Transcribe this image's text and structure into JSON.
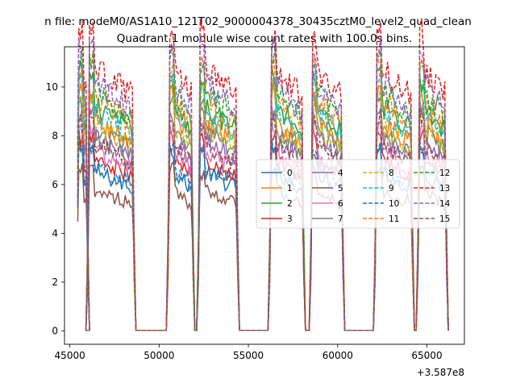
{
  "chart_data": {
    "type": "line",
    "suptitle": "n file: modeM0/AS1A10_121T02_9000004378_30435cztM0_level2_quad_clean",
    "title": "Quadrant 1 module wise count rates with 100.0s bins.",
    "xlabel": "",
    "ylabel": "",
    "x_offset_label": "+3.587e8",
    "xlim": [
      44700,
      67100
    ],
    "ylim": [
      -0.55,
      11.65
    ],
    "xticks": [
      45000,
      50000,
      55000,
      60000,
      65000
    ],
    "xtick_labels": [
      "45000",
      "50000",
      "55000",
      "60000",
      "65000"
    ],
    "yticks": [
      0,
      2,
      4,
      6,
      8,
      10
    ],
    "ytick_labels": [
      "0",
      "2",
      "4",
      "6",
      "8",
      "10"
    ],
    "legend_position": "center-right",
    "segments": [
      {
        "start": 45500,
        "end": 45900
      },
      {
        "start": 46100,
        "end": 48500
      },
      {
        "start": 50600,
        "end": 51800
      },
      {
        "start": 52300,
        "end": 54300
      },
      {
        "start": 56300,
        "end": 58000
      },
      {
        "start": 58600,
        "end": 60200
      },
      {
        "start": 62200,
        "end": 64100
      },
      {
        "start": 64600,
        "end": 66000
      }
    ],
    "series": [
      {
        "name": "0",
        "level": 6.3,
        "color": "#1f77b4",
        "dash": "solid"
      },
      {
        "name": "1",
        "level": 8.3,
        "color": "#ff7f0e",
        "dash": "solid"
      },
      {
        "name": "2",
        "level": 8.9,
        "color": "#2ca02c",
        "dash": "solid"
      },
      {
        "name": "3",
        "level": 6.8,
        "color": "#d62728",
        "dash": "solid"
      },
      {
        "name": "4",
        "level": 7.6,
        "color": "#9467bd",
        "dash": "solid"
      },
      {
        "name": "5",
        "level": 5.6,
        "color": "#8c564b",
        "dash": "solid"
      },
      {
        "name": "6",
        "level": 7.1,
        "color": "#e377c2",
        "dash": "solid"
      },
      {
        "name": "7",
        "level": 7.9,
        "color": "#7f7f7f",
        "dash": "solid"
      },
      {
        "name": "8",
        "level": 8.1,
        "color": "#bcbd22",
        "dash": "dashed"
      },
      {
        "name": "9",
        "level": 8.7,
        "color": "#17becf",
        "dash": "dashed"
      },
      {
        "name": "10",
        "level": 6.5,
        "color": "#1f77b4",
        "dash": "dashed"
      },
      {
        "name": "11",
        "level": 9.2,
        "color": "#ff7f0e",
        "dash": "dashed"
      },
      {
        "name": "12",
        "level": 9.5,
        "color": "#2ca02c",
        "dash": "dashed"
      },
      {
        "name": "13",
        "level": 10.4,
        "color": "#d62728",
        "dash": "dashed"
      },
      {
        "name": "14",
        "level": 9.8,
        "color": "#9467bd",
        "dash": "dashed"
      },
      {
        "name": "15",
        "level": 7.4,
        "color": "#8c564b",
        "dash": "dashed"
      }
    ]
  }
}
